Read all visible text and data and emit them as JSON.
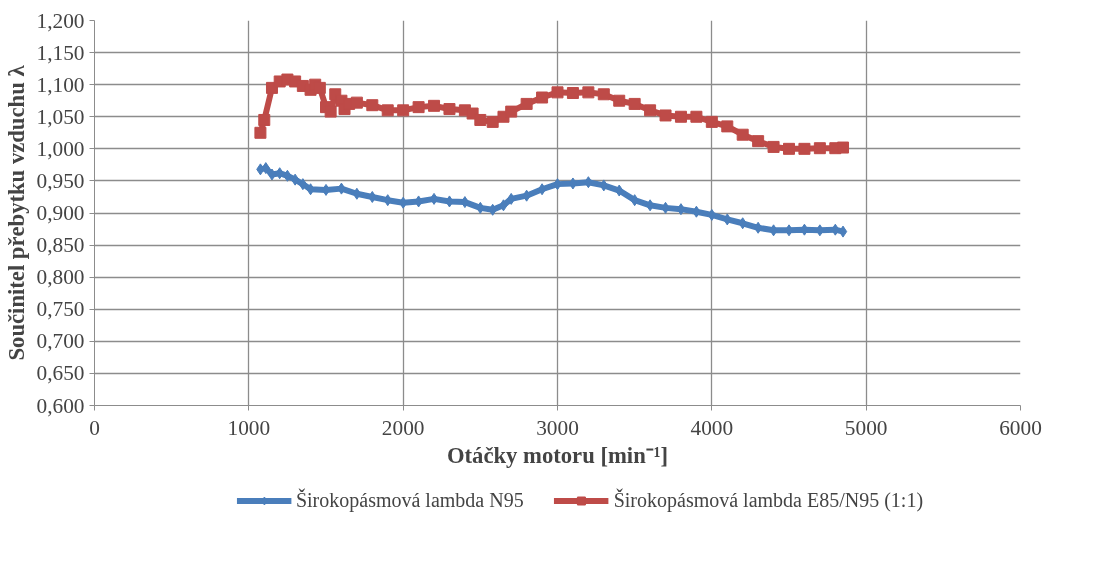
{
  "chart_data": {
    "type": "line",
    "xlabel": "Otáčky motoru [min⁻¹]",
    "ylabel": "Součinitel přebytku vzduchu λ",
    "xlim": [
      0,
      6000
    ],
    "xticks": [
      0,
      1000,
      2000,
      3000,
      4000,
      5000,
      6000
    ],
    "ylim": [
      0.6,
      1.2
    ],
    "yticks": [
      {
        "value": 0.6,
        "label": "0,600"
      },
      {
        "value": 0.65,
        "label": "0,650"
      },
      {
        "value": 0.7,
        "label": "0,700"
      },
      {
        "value": 0.75,
        "label": "0,750"
      },
      {
        "value": 0.8,
        "label": "0,800"
      },
      {
        "value": 0.85,
        "label": "0,850"
      },
      {
        "value": 0.9,
        "label": "0,900"
      },
      {
        "value": 0.95,
        "label": "0,950"
      },
      {
        "value": 1.0,
        "label": "1,000"
      },
      {
        "value": 1.05,
        "label": "1,050"
      },
      {
        "value": 1.1,
        "label": "1,100"
      },
      {
        "value": 1.15,
        "label": "1,150"
      },
      {
        "value": 1.2,
        "label": "1,200"
      }
    ],
    "grid": true,
    "legend": "bottom",
    "series": [
      {
        "name": "Širokopásmová lambda N95",
        "color": "#4a7ebb",
        "marker": "diamond",
        "x": [
          1075,
          1110,
          1150,
          1200,
          1250,
          1300,
          1350,
          1400,
          1500,
          1600,
          1700,
          1800,
          1900,
          2000,
          2100,
          2200,
          2300,
          2400,
          2500,
          2580,
          2650,
          2700,
          2800,
          2900,
          3000,
          3100,
          3200,
          3300,
          3400,
          3500,
          3600,
          3700,
          3800,
          3900,
          4000,
          4100,
          4200,
          4300,
          4400,
          4500,
          4600,
          4700,
          4800,
          4850
        ],
        "values": [
          0.968,
          0.97,
          0.96,
          0.962,
          0.958,
          0.952,
          0.945,
          0.937,
          0.936,
          0.938,
          0.93,
          0.925,
          0.92,
          0.916,
          0.918,
          0.922,
          0.918,
          0.917,
          0.908,
          0.905,
          0.912,
          0.922,
          0.927,
          0.937,
          0.945,
          0.946,
          0.948,
          0.943,
          0.935,
          0.92,
          0.912,
          0.908,
          0.906,
          0.902,
          0.897,
          0.89,
          0.884,
          0.877,
          0.873,
          0.873,
          0.874,
          0.873,
          0.874,
          0.871
        ]
      },
      {
        "name": "Širokopásmová lambda E85/N95 (1:1)",
        "color": "#be4b48",
        "marker": "square",
        "x": [
          1075,
          1100,
          1150,
          1200,
          1250,
          1300,
          1350,
          1400,
          1430,
          1460,
          1500,
          1530,
          1560,
          1600,
          1620,
          1650,
          1700,
          1800,
          1900,
          2000,
          2100,
          2200,
          2300,
          2400,
          2450,
          2500,
          2580,
          2650,
          2700,
          2800,
          2900,
          3000,
          3100,
          3200,
          3300,
          3400,
          3500,
          3600,
          3700,
          3800,
          3900,
          4000,
          4100,
          4200,
          4300,
          4400,
          4500,
          4600,
          4700,
          4800,
          4850
        ],
        "values": [
          1.025,
          1.045,
          1.095,
          1.105,
          1.108,
          1.105,
          1.098,
          1.092,
          1.1,
          1.095,
          1.065,
          1.058,
          1.085,
          1.075,
          1.062,
          1.07,
          1.072,
          1.068,
          1.06,
          1.06,
          1.065,
          1.067,
          1.062,
          1.06,
          1.055,
          1.045,
          1.042,
          1.05,
          1.058,
          1.07,
          1.08,
          1.088,
          1.087,
          1.088,
          1.085,
          1.075,
          1.07,
          1.06,
          1.052,
          1.05,
          1.05,
          1.042,
          1.035,
          1.022,
          1.012,
          1.003,
          1.0,
          1.0,
          1.001,
          1.001,
          1.002
        ]
      }
    ]
  }
}
